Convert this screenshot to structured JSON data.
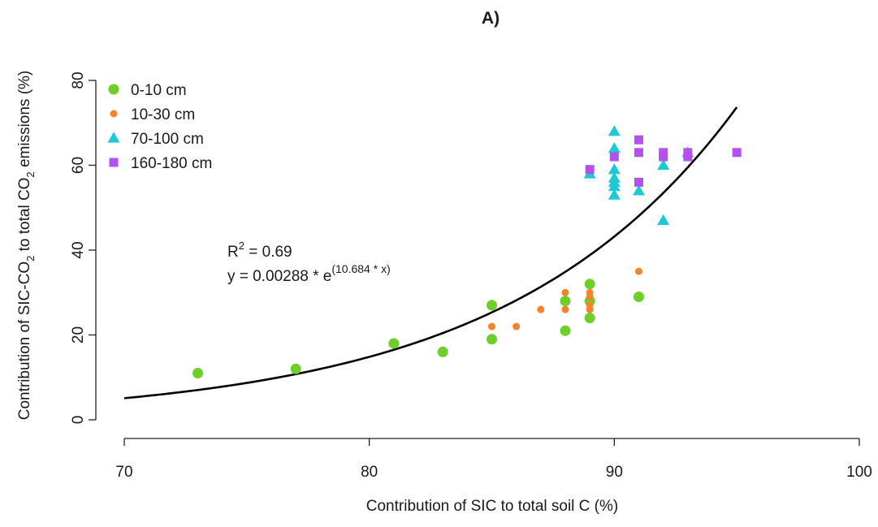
{
  "chart_data": {
    "type": "scatter",
    "title": "A)",
    "xlabel": "Contribution of SIC to total soil C (%)",
    "ylabel": {
      "pre": "Contribution of SIC-CO",
      "sub1": "2",
      "mid": " to total CO",
      "sub2": "2",
      "post": " emissions (%)"
    },
    "xlim": [
      70,
      100
    ],
    "ylim": [
      0,
      80
    ],
    "xticks": [
      70,
      80,
      90,
      100
    ],
    "yticks": [
      0,
      20,
      40,
      60,
      80
    ],
    "grid": false,
    "legend_position": "top-left",
    "series": [
      {
        "name": "0-10 cm",
        "marker": "circle-large",
        "color": "#6fcf2a",
        "points": [
          [
            73,
            11
          ],
          [
            77,
            12
          ],
          [
            81,
            18
          ],
          [
            83,
            16
          ],
          [
            85,
            19
          ],
          [
            85,
            27
          ],
          [
            88,
            21
          ],
          [
            88,
            28
          ],
          [
            89,
            24
          ],
          [
            89,
            28
          ],
          [
            89,
            32
          ],
          [
            91,
            29
          ]
        ]
      },
      {
        "name": "10-30 cm",
        "marker": "circle-small",
        "color": "#f5832a",
        "points": [
          [
            85,
            22
          ],
          [
            86,
            22
          ],
          [
            87,
            26
          ],
          [
            88,
            26
          ],
          [
            88,
            30
          ],
          [
            89,
            26
          ],
          [
            89,
            27
          ],
          [
            89,
            29
          ],
          [
            89,
            30
          ],
          [
            91,
            35
          ]
        ]
      },
      {
        "name": "70-100 cm",
        "marker": "triangle",
        "color": "#1ec8d4",
        "points": [
          [
            89,
            58
          ],
          [
            90,
            53
          ],
          [
            90,
            55
          ],
          [
            90,
            56
          ],
          [
            90,
            57
          ],
          [
            90,
            59
          ],
          [
            90,
            64
          ],
          [
            90,
            68
          ],
          [
            91,
            54
          ],
          [
            92,
            47
          ],
          [
            92,
            60
          ],
          [
            93,
            63
          ]
        ]
      },
      {
        "name": "160-180 cm",
        "marker": "square",
        "color": "#b44ff0",
        "points": [
          [
            89,
            59
          ],
          [
            90,
            62
          ],
          [
            91,
            56
          ],
          [
            91,
            63
          ],
          [
            91,
            66
          ],
          [
            92,
            62
          ],
          [
            92,
            63
          ],
          [
            93,
            62
          ],
          [
            93,
            63
          ],
          [
            95,
            63
          ]
        ]
      }
    ],
    "fit": {
      "a": 0.00288,
      "b": 10.684,
      "x_from": 70,
      "x_to": 95,
      "color": "#000000"
    },
    "annotation": {
      "r2_label": "R",
      "r2_sup": "2",
      "r2_value": " =  0.69",
      "eq_prefix": "y = 0.00288 * e",
      "eq_exponent": "(10.684 * x)"
    }
  }
}
